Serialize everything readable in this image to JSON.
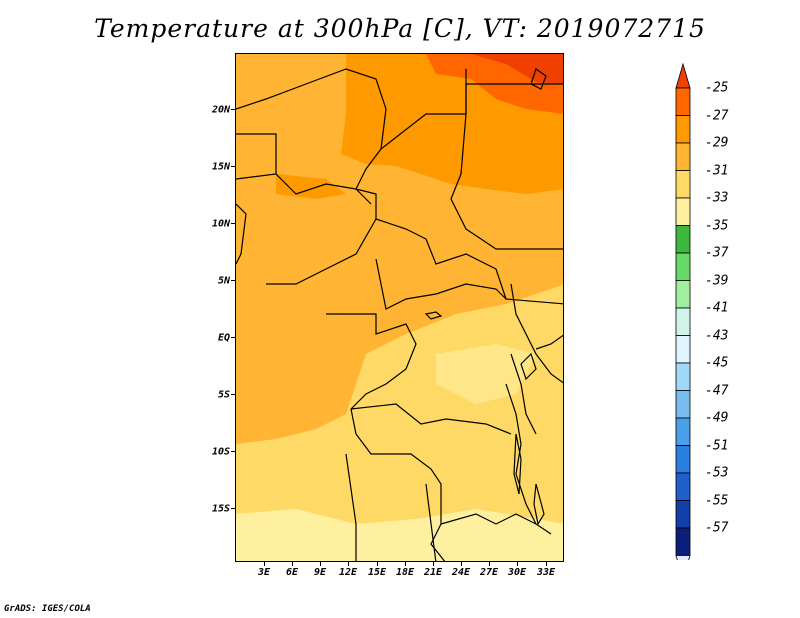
{
  "title": "Temperature at 300hPa [C], VT: 2019072715",
  "footer": "GrADS: IGES/COLA",
  "map": {
    "latitude_labels": [
      "20N",
      "15N",
      "10N",
      "5N",
      "EQ",
      "5S",
      "10S",
      "15S"
    ],
    "longitude_labels": [
      "3E",
      "6E",
      "9E",
      "12E",
      "15E",
      "18E",
      "21E",
      "24E",
      "27E",
      "30E",
      "33E"
    ]
  },
  "colorbar": {
    "labels": [
      "-25",
      "-27",
      "-29",
      "-31",
      "-33",
      "-35",
      "-37",
      "-39",
      "-41",
      "-43",
      "-45",
      "-47",
      "-49",
      "-51",
      "-53",
      "-55",
      "-57"
    ],
    "colors": [
      "#f04000",
      "#ff6600",
      "#ff9900",
      "#ffb533",
      "#ffd966",
      "#fff0a0",
      "#3cb93c",
      "#66d966",
      "#a0eea0",
      "#d0f5e8",
      "#e0f5ff",
      "#a0d8f8",
      "#78bcf0",
      "#4b9ee8",
      "#2b7fe0",
      "#1f5fcc",
      "#1040a8",
      "#0a1f7a"
    ],
    "lower_cap_color": "#e8e8ff"
  }
}
